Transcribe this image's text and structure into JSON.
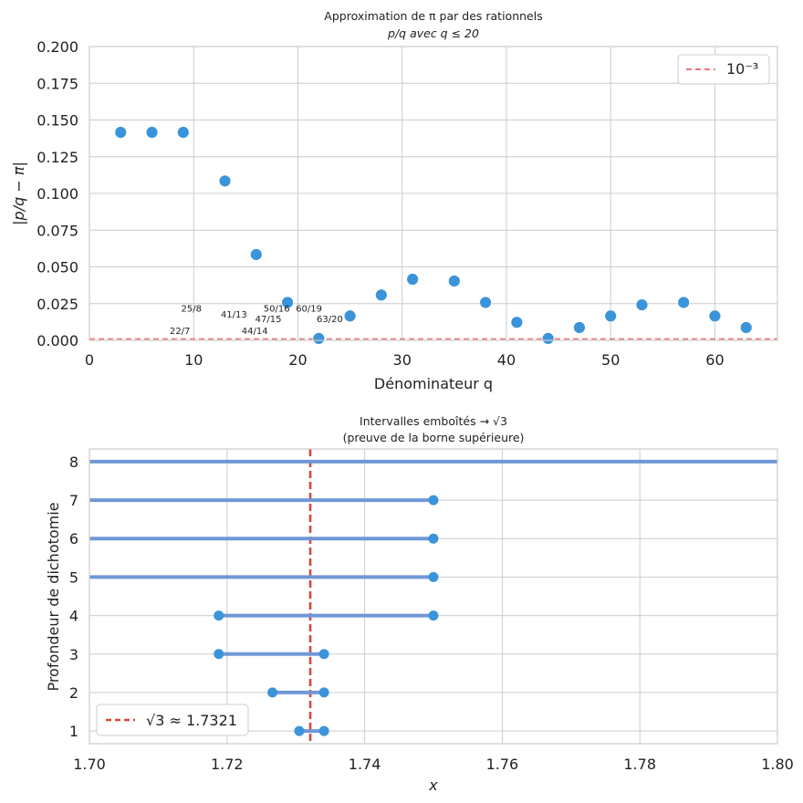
{
  "chart_data": [
    {
      "type": "scatter",
      "title_line1": "Approximation de π par des rationnels",
      "title_line2": "p/q avec q ≤ 20",
      "xlabel": "Dénominateur q",
      "ylabel": "|p/q − π|",
      "xlim": [
        0,
        66
      ],
      "ylim": [
        0,
        0.2
      ],
      "xticks": [
        "0",
        "10",
        "20",
        "30",
        "40",
        "50",
        "60"
      ],
      "yticks": [
        "0.000",
        "0.025",
        "0.050",
        "0.075",
        "0.100",
        "0.125",
        "0.150",
        "0.175",
        "0.200"
      ],
      "point_color": "#3b94d9",
      "points": [
        {
          "x": 3,
          "y": 0.1416
        },
        {
          "x": 6,
          "y": 0.1416
        },
        {
          "x": 9,
          "y": 0.1416
        },
        {
          "x": 13,
          "y": 0.1085
        },
        {
          "x": 16,
          "y": 0.0584
        },
        {
          "x": 19,
          "y": 0.0258
        },
        {
          "x": 22,
          "y": 0.0013
        },
        {
          "x": 25,
          "y": 0.0166
        },
        {
          "x": 28,
          "y": 0.0309
        },
        {
          "x": 31,
          "y": 0.0416
        },
        {
          "x": 35,
          "y": 0.0404
        },
        {
          "x": 38,
          "y": 0.0258
        },
        {
          "x": 41,
          "y": 0.0123
        },
        {
          "x": 44,
          "y": 0.0013
        },
        {
          "x": 47,
          "y": 0.0087
        },
        {
          "x": 50,
          "y": 0.0166
        },
        {
          "x": 53,
          "y": 0.0242
        },
        {
          "x": 57,
          "y": 0.0258
        },
        {
          "x": 60,
          "y": 0.0166
        },
        {
          "x": 63,
          "y": 0.0087
        }
      ],
      "annotations": [
        {
          "text": "25/8",
          "x": 8.8,
          "y": 0.0195
        },
        {
          "text": "41/13",
          "x": 12.6,
          "y": 0.0155
        },
        {
          "text": "50/16",
          "x": 16.7,
          "y": 0.0195
        },
        {
          "text": "60/19",
          "x": 19.8,
          "y": 0.0195
        },
        {
          "text": "47/15",
          "x": 15.9,
          "y": 0.0125
        },
        {
          "text": "63/20",
          "x": 21.8,
          "y": 0.0125
        },
        {
          "text": "22/7",
          "x": 7.7,
          "y": 0.0045
        },
        {
          "text": "44/14",
          "x": 14.6,
          "y": 0.0045
        }
      ],
      "hline": {
        "y": 0.001,
        "label": "10⁻³",
        "color": "#e8787a"
      }
    },
    {
      "type": "interval",
      "title_line1": "Intervalles emboîtés → √3",
      "title_line2": "(preuve de la borne supérieure)",
      "xlabel": "x",
      "ylabel": "Profondeur de dichotomie",
      "xlim": [
        1.7,
        1.8
      ],
      "ylim": [
        0.67,
        8.33
      ],
      "xticks": [
        "1.70",
        "1.72",
        "1.74",
        "1.76",
        "1.78",
        "1.80"
      ],
      "yticks": [
        "1",
        "2",
        "3",
        "4",
        "5",
        "6",
        "7",
        "8"
      ],
      "line_color": "#7097d6",
      "point_color": "#3b94d9",
      "intervals": [
        {
          "depth": 1,
          "lo": 1.7305,
          "hi": 1.7341,
          "lo_marker": true,
          "hi_marker": true
        },
        {
          "depth": 2,
          "lo": 1.7266,
          "hi": 1.7341,
          "lo_marker": true,
          "hi_marker": true
        },
        {
          "depth": 3,
          "lo": 1.7188,
          "hi": 1.7341,
          "lo_marker": true,
          "hi_marker": true
        },
        {
          "depth": 4,
          "lo": 1.7188,
          "hi": 1.75,
          "lo_marker": true,
          "hi_marker": true
        },
        {
          "depth": 5,
          "lo": 1.7,
          "hi": 1.75,
          "lo_marker": false,
          "hi_marker": true
        },
        {
          "depth": 6,
          "lo": 1.7,
          "hi": 1.75,
          "lo_marker": false,
          "hi_marker": true
        },
        {
          "depth": 7,
          "lo": 1.7,
          "hi": 1.75,
          "lo_marker": false,
          "hi_marker": true
        },
        {
          "depth": 8,
          "lo": 1.7,
          "hi": 1.8,
          "lo_marker": false,
          "hi_marker": false
        }
      ],
      "vline": {
        "x": 1.7321,
        "label": "√3 ≈ 1.7321",
        "color": "#d9463d"
      }
    }
  ]
}
